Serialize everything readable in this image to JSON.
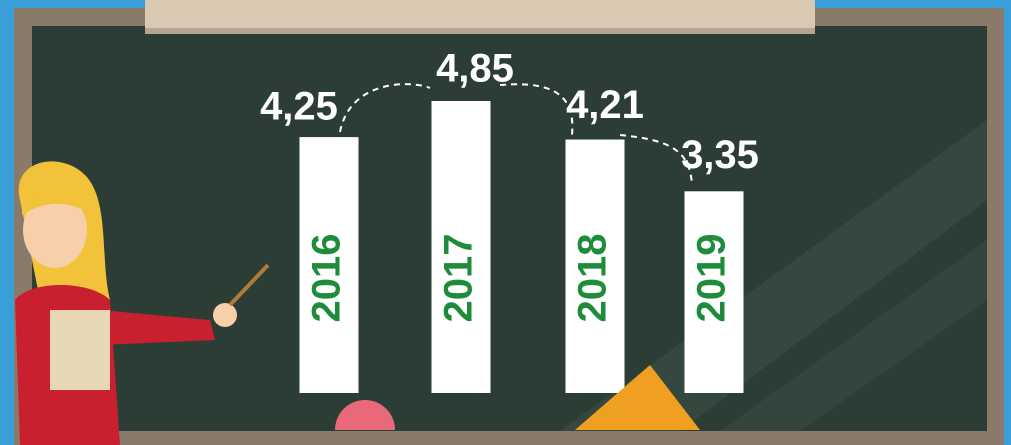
{
  "chart_data": {
    "type": "bar",
    "categories": [
      "2016",
      "2017",
      "2018",
      "2019"
    ],
    "values": [
      4.25,
      4.85,
      4.21,
      3.35
    ],
    "value_labels": [
      "4,25",
      "4,85",
      "4,21",
      "3,35"
    ],
    "color": "#ffffff",
    "label_color": "#1e8c3a"
  }
}
